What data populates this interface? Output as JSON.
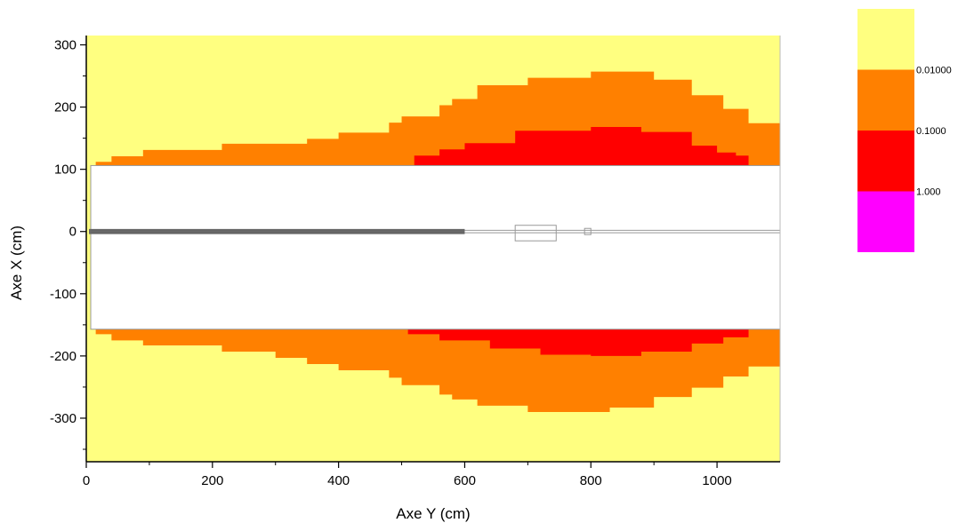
{
  "chart_data": {
    "type": "heatmap",
    "title": "",
    "xlabel": "Axe Y (cm)",
    "ylabel": "Axe X (cm)",
    "xlim": [
      0,
      1100
    ],
    "ylim": [
      -370,
      315
    ],
    "xticks": [
      0,
      200,
      400,
      600,
      800,
      1000
    ],
    "yticks": [
      300,
      200,
      100,
      0,
      -100,
      -200,
      -300
    ],
    "grid": false,
    "legend_position": "right",
    "colors": {
      "background": "#FFFF80",
      "level_0.01": "#FF8000",
      "level_0.1": "#FF0000",
      "level_1": "#FF00FF",
      "cutout": "#FFFFFF",
      "geometry_line": "#999999"
    },
    "legend": {
      "colors": [
        "#FFFF80",
        "#FF8000",
        "#FF0000",
        "#FF00FF"
      ],
      "labels": [
        "0.01000",
        "0.1000",
        "1.000"
      ]
    },
    "cutout_region": {
      "x": [
        0,
        1100
      ],
      "y": [
        -157,
        106
      ]
    },
    "orange_top": {
      "description": "upper boundary of the 0.01 iso-level (top side)",
      "x": [
        0,
        15,
        40,
        90,
        215,
        300,
        350,
        400,
        480,
        500,
        560,
        580,
        620,
        700,
        800,
        830,
        900,
        960,
        1010,
        1050,
        1100
      ],
      "y": [
        106,
        112,
        121,
        131,
        141,
        141,
        149,
        159,
        175,
        185,
        203,
        213,
        235,
        247,
        257,
        257,
        244,
        219,
        197,
        174,
        140
      ]
    },
    "red_top": {
      "description": "upper boundary of the 0.1 iso-level (top side)",
      "x": [
        520,
        560,
        600,
        680,
        800,
        880,
        960,
        1000,
        1030
      ],
      "y": [
        122,
        132,
        142,
        162,
        168,
        160,
        138,
        127,
        122
      ]
    },
    "orange_bottom": {
      "description": "lower boundary of the 0.01 iso-level (bottom side)",
      "x": [
        0,
        15,
        40,
        90,
        215,
        300,
        350,
        400,
        480,
        500,
        560,
        580,
        620,
        700,
        800,
        830,
        900,
        960,
        1010,
        1050,
        1100
      ],
      "y": [
        -157,
        -165,
        -175,
        -183,
        -193,
        -203,
        -213,
        -223,
        -235,
        -247,
        -262,
        -270,
        -280,
        -290,
        -290,
        -283,
        -266,
        -251,
        -233,
        -217,
        -200
      ]
    },
    "red_bottom": {
      "description": "lower boundary of the 0.1 iso-level (bottom side)",
      "x": [
        510,
        560,
        640,
        720,
        800,
        880,
        960,
        1010
      ],
      "y": [
        -165,
        -175,
        -188,
        -198,
        -200,
        -193,
        -180,
        -170
      ]
    },
    "geometry": {
      "beam_pipe_y": [
        -2,
        2
      ],
      "beam_end_x": 600,
      "box": {
        "x": [
          680,
          745
        ],
        "y": [
          -15,
          10
        ]
      },
      "small_box": {
        "x": [
          790,
          800
        ],
        "y": [
          -5,
          5
        ]
      }
    }
  }
}
